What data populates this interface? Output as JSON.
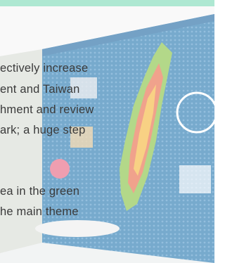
{
  "paragraph": {
    "lines": [
      "ectively increase",
      "ent and Taiwan",
      "hment and review",
      "ark; a huge step",
      "ea in the green",
      "he main theme"
    ]
  }
}
